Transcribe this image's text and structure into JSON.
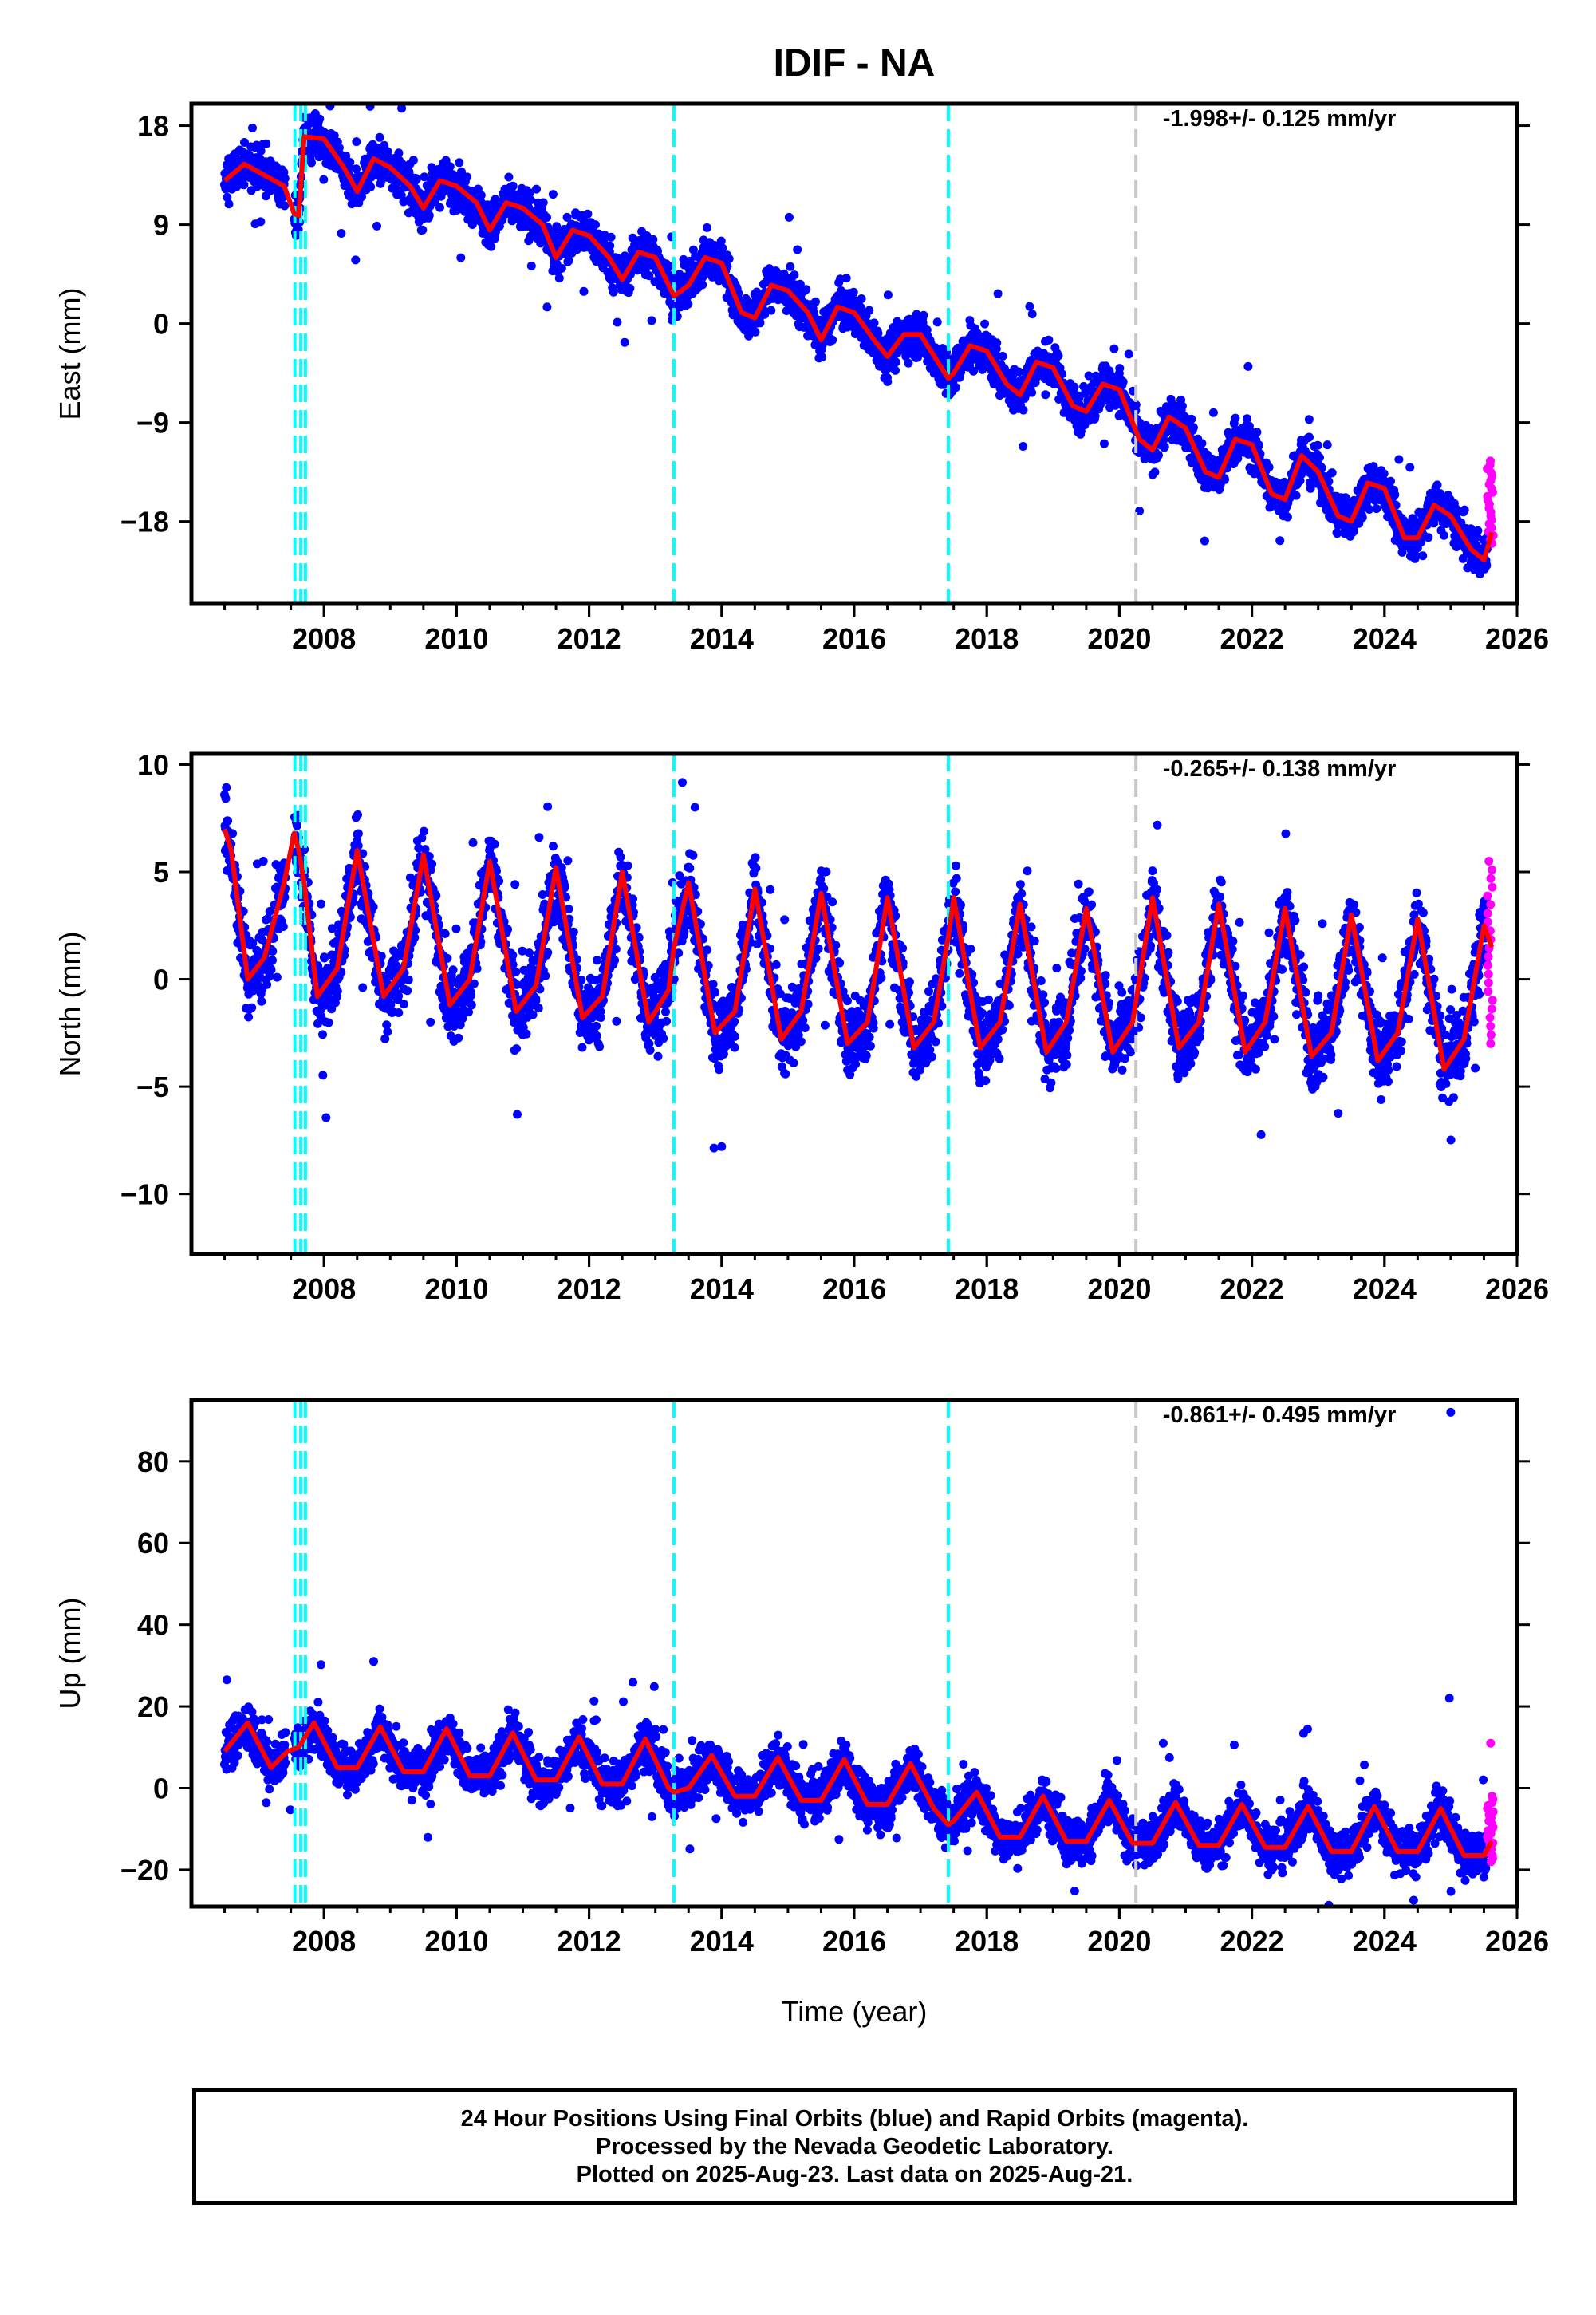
{
  "title": "IDIF - NA",
  "x_label": "Time (year)",
  "footer": {
    "line1": "24 Hour Positions Using Final Orbits (blue) and Rapid Orbits (magenta).",
    "line2": "Processed by the Nevada Geodetic Laboratory.",
    "line3": "Plotted on 2025-Aug-23. Last data on 2025-Aug-21."
  },
  "colors": {
    "final_points": "#0000ff",
    "rapid_points": "#ff00ff",
    "model_line": "#ff0000",
    "event_lines": "#00ffff",
    "gray_event_line": "#c8c8c8"
  },
  "chart_data": [
    {
      "type": "scatter",
      "ylabel": "East (mm)",
      "rate_text": "-1.998+/- 0.125 mm/yr",
      "xlim": [
        2006.0,
        2026.0
      ],
      "ylim": [
        -25.5,
        20.0
      ],
      "x_ticks": [
        2008,
        2010,
        2012,
        2014,
        2016,
        2018,
        2020,
        2022,
        2024,
        2026
      ],
      "y_ticks": [
        18,
        9,
        0,
        -9,
        -18
      ],
      "y_tick_labels": [
        "18",
        "9",
        "0",
        "−9",
        "−18"
      ],
      "event_lines": [
        2007.56,
        2007.65,
        2007.72,
        2013.28,
        2017.42
      ],
      "gray_event_lines": [
        2020.25
      ],
      "model": {
        "x": [
          2006.5,
          2006.8,
          2007.1,
          2007.4,
          2007.55,
          2007.62,
          2007.7,
          2008.0,
          2008.3,
          2008.5,
          2008.75,
          2009.0,
          2009.3,
          2009.5,
          2009.75,
          2010.0,
          2010.3,
          2010.5,
          2010.75,
          2011.0,
          2011.3,
          2011.5,
          2011.75,
          2012.0,
          2012.3,
          2012.5,
          2012.75,
          2013.0,
          2013.28,
          2013.5,
          2013.75,
          2014.0,
          2014.3,
          2014.5,
          2014.75,
          2015.0,
          2015.3,
          2015.5,
          2015.75,
          2016.0,
          2016.3,
          2016.5,
          2016.75,
          2017.0,
          2017.42,
          2017.5,
          2017.75,
          2018.0,
          2018.3,
          2018.5,
          2018.75,
          2019.0,
          2019.3,
          2019.5,
          2019.75,
          2020.0,
          2020.3,
          2020.5,
          2020.75,
          2021.0,
          2021.3,
          2021.5,
          2021.75,
          2022.0,
          2022.3,
          2022.5,
          2022.75,
          2023.0,
          2023.3,
          2023.5,
          2023.75,
          2024.0,
          2024.3,
          2024.5,
          2024.75,
          2025.0,
          2025.3,
          2025.5,
          2025.62
        ],
        "y": [
          13.0,
          14.5,
          13.5,
          12.5,
          10.0,
          9.8,
          17.0,
          16.8,
          14.2,
          12.0,
          15.0,
          14.2,
          12.5,
          10.5,
          13.0,
          12.5,
          11.0,
          8.5,
          11.0,
          10.5,
          9.0,
          6.0,
          8.5,
          8.0,
          6.0,
          4.0,
          6.5,
          6.0,
          2.5,
          3.5,
          6.0,
          5.5,
          1.0,
          0.5,
          3.5,
          3.0,
          1.0,
          -1.5,
          1.5,
          1.0,
          -1.5,
          -3.0,
          -1.0,
          -1.0,
          -5.0,
          -4.5,
          -2.0,
          -2.5,
          -5.5,
          -6.5,
          -3.5,
          -4.0,
          -7.5,
          -8.0,
          -5.5,
          -6.0,
          -10.5,
          -11.5,
          -8.5,
          -9.5,
          -13.5,
          -14.0,
          -10.5,
          -11.0,
          -15.5,
          -16.0,
          -12.0,
          -13.5,
          -17.5,
          -18.0,
          -14.5,
          -15.0,
          -19.5,
          -19.5,
          -16.5,
          -17.5,
          -20.5,
          -21.5,
          -19.0
        ]
      },
      "rapid": {
        "x_range": [
          2025.55,
          2025.64
        ],
        "y_range": [
          -20.0,
          -12.5
        ]
      }
    },
    {
      "type": "scatter",
      "ylabel": "North (mm)",
      "rate_text": "-0.265+/- 0.138 mm/yr",
      "xlim": [
        2006.0,
        2026.0
      ],
      "ylim": [
        -12.8,
        10.5
      ],
      "x_ticks": [
        2008,
        2010,
        2012,
        2014,
        2016,
        2018,
        2020,
        2022,
        2024,
        2026
      ],
      "y_ticks": [
        10,
        5,
        0,
        -5,
        -10
      ],
      "y_tick_labels": [
        "10",
        "5",
        "0",
        "−5",
        "−10"
      ],
      "event_lines": [
        2007.56,
        2007.65,
        2007.72,
        2013.28,
        2017.42
      ],
      "gray_event_lines": [
        2020.25
      ],
      "model": {
        "x": [
          2006.5,
          2006.6,
          2006.85,
          2007.1,
          2007.4,
          2007.55,
          2007.62,
          2007.7,
          2007.9,
          2008.2,
          2008.5,
          2008.9,
          2009.2,
          2009.5,
          2009.9,
          2010.2,
          2010.5,
          2010.9,
          2011.2,
          2011.5,
          2011.9,
          2012.2,
          2012.5,
          2012.9,
          2013.2,
          2013.28,
          2013.5,
          2013.9,
          2014.2,
          2014.5,
          2014.9,
          2015.2,
          2015.5,
          2015.9,
          2016.2,
          2016.5,
          2016.9,
          2017.2,
          2017.42,
          2017.5,
          2017.9,
          2018.2,
          2018.5,
          2018.9,
          2019.2,
          2019.5,
          2019.9,
          2020.2,
          2020.5,
          2020.9,
          2021.2,
          2021.5,
          2021.9,
          2022.2,
          2022.5,
          2022.9,
          2023.2,
          2023.5,
          2023.9,
          2024.2,
          2024.5,
          2024.9,
          2025.2,
          2025.5,
          2025.62
        ],
        "y": [
          7.0,
          6.0,
          0.0,
          1.0,
          4.5,
          6.8,
          6.0,
          4.5,
          -0.8,
          0.5,
          6.0,
          -0.8,
          0.5,
          5.8,
          -1.2,
          0.0,
          5.5,
          -1.5,
          -0.3,
          5.2,
          -1.8,
          -0.8,
          5.0,
          -2.0,
          -0.5,
          1.5,
          4.5,
          -2.5,
          -1.5,
          4.2,
          -2.8,
          -1.5,
          4.0,
          -3.0,
          -2.0,
          3.8,
          -3.2,
          -2.0,
          2.0,
          3.8,
          -3.2,
          -2.0,
          3.5,
          -3.4,
          -2.0,
          3.3,
          -3.4,
          -2.0,
          3.8,
          -3.2,
          -2.0,
          3.5,
          -3.4,
          -2.0,
          3.3,
          -3.6,
          -2.5,
          3.0,
          -3.8,
          -2.5,
          2.8,
          -4.2,
          -2.8,
          2.5,
          1.5
        ]
      },
      "rapid": {
        "x_range": [
          2025.55,
          2025.64
        ],
        "y_range": [
          -3.0,
          5.5
        ]
      }
    },
    {
      "type": "scatter",
      "ylabel": "Up (mm)",
      "rate_text": "-0.861+/- 0.495 mm/yr",
      "xlim": [
        2006.0,
        2026.0
      ],
      "ylim": [
        -29.0,
        95.0
      ],
      "x_ticks": [
        2008,
        2010,
        2012,
        2014,
        2016,
        2018,
        2020,
        2022,
        2024,
        2026
      ],
      "y_ticks": [
        80,
        60,
        40,
        20,
        0,
        -20
      ],
      "y_tick_labels": [
        "80",
        "60",
        "40",
        "20",
        "0",
        "−20"
      ],
      "event_lines": [
        2007.56,
        2007.65,
        2007.72,
        2013.28,
        2017.42
      ],
      "gray_event_lines": [
        2020.25
      ],
      "model": {
        "x": [
          2006.5,
          2006.85,
          2007.2,
          2007.45,
          2007.62,
          2007.85,
          2008.2,
          2008.5,
          2008.85,
          2009.2,
          2009.5,
          2009.85,
          2010.2,
          2010.5,
          2010.85,
          2011.2,
          2011.5,
          2011.85,
          2012.2,
          2012.5,
          2012.85,
          2013.2,
          2013.28,
          2013.5,
          2013.85,
          2014.2,
          2014.5,
          2014.85,
          2015.2,
          2015.5,
          2015.85,
          2016.2,
          2016.5,
          2016.85,
          2017.2,
          2017.42,
          2017.5,
          2017.85,
          2018.2,
          2018.5,
          2018.85,
          2019.2,
          2019.5,
          2019.85,
          2020.2,
          2020.5,
          2020.85,
          2021.2,
          2021.5,
          2021.85,
          2022.2,
          2022.5,
          2022.85,
          2023.2,
          2023.5,
          2023.85,
          2024.2,
          2024.5,
          2024.85,
          2025.2,
          2025.5,
          2025.62
        ],
        "y": [
          9.0,
          16.0,
          5.0,
          9.0,
          10.0,
          16.0,
          5.0,
          5.0,
          15.0,
          4.0,
          4.0,
          14.5,
          3.0,
          3.0,
          13.5,
          2.0,
          2.0,
          12.5,
          1.0,
          1.0,
          12.0,
          0.0,
          -1.0,
          0.0,
          8.0,
          -2.0,
          -2.0,
          7.5,
          -3.0,
          -3.0,
          7.0,
          -4.0,
          -4.0,
          6.0,
          -5.0,
          -9.0,
          -8.0,
          -1.0,
          -12.0,
          -12.0,
          -2.0,
          -13.0,
          -13.0,
          -3.0,
          -13.5,
          -13.5,
          -3.5,
          -14.0,
          -14.0,
          -4.0,
          -14.5,
          -14.5,
          -4.5,
          -15.5,
          -15.5,
          -4.5,
          -15.5,
          -15.5,
          -5.0,
          -16.5,
          -16.5,
          -13.0
        ]
      },
      "outliers": [
        [
          2025.0,
          92.0
        ],
        [
          2024.98,
          22.0
        ],
        [
          2008.75,
          31.0
        ]
      ],
      "rapid": {
        "x_range": [
          2025.55,
          2025.64
        ],
        "y_range": [
          -18.0,
          -2.0
        ]
      },
      "rapid_outliers": [
        [
          2025.6,
          11.0
        ]
      ]
    }
  ]
}
